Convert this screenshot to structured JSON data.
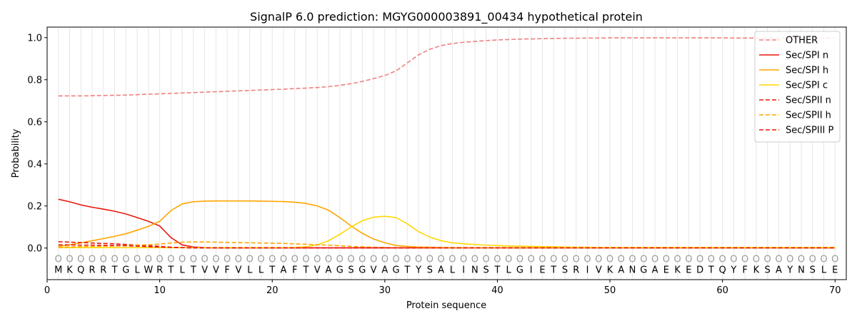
{
  "chart_data": {
    "type": "line",
    "title": "SignalP 6.0 prediction: MGYG000003891_00434 hypothetical protein",
    "xlabel": "Protein sequence",
    "ylabel": "Probability",
    "xlim": [
      0,
      71
    ],
    "ylim": [
      -0.15,
      1.05
    ],
    "xticks": [
      "0",
      "10",
      "20",
      "30",
      "40",
      "50",
      "60",
      "70"
    ],
    "yticks": [
      "0.0",
      "0.2",
      "0.4",
      "0.6",
      "0.8",
      "1.0"
    ],
    "grid": "vertical lines at each residue",
    "legend_position": "top-right",
    "sequence": [
      "M",
      "K",
      "Q",
      "R",
      "R",
      "T",
      "G",
      "L",
      "W",
      "R",
      "T",
      "L",
      "T",
      "V",
      "V",
      "F",
      "V",
      "L",
      "L",
      "T",
      "A",
      "F",
      "T",
      "V",
      "A",
      "G",
      "S",
      "G",
      "V",
      "A",
      "G",
      "T",
      "Y",
      "S",
      "A",
      "L",
      "I",
      "N",
      "S",
      "T",
      "L",
      "G",
      "I",
      "E",
      "T",
      "S",
      "R",
      "I",
      "V",
      "K",
      "A",
      "N",
      "G",
      "A",
      "E",
      "K",
      "E",
      "D",
      "T",
      "Q",
      "Y",
      "F",
      "K",
      "S",
      "A",
      "Y",
      "N",
      "S",
      "L",
      "E"
    ],
    "region_labels": [
      "O",
      "O",
      "O",
      "O",
      "O",
      "O",
      "O",
      "O",
      "O",
      "O",
      "O",
      "O",
      "O",
      "O",
      "O",
      "O",
      "O",
      "O",
      "O",
      "O",
      "O",
      "O",
      "O",
      "O",
      "O",
      "O",
      "O",
      "O",
      "O",
      "O",
      "O",
      "O",
      "O",
      "O",
      "O",
      "O",
      "O",
      "O",
      "O",
      "O",
      "O",
      "O",
      "O",
      "O",
      "O",
      "O",
      "O",
      "O",
      "O",
      "O",
      "O",
      "O",
      "O",
      "O",
      "O",
      "O",
      "O",
      "O",
      "O",
      "O",
      "O",
      "O",
      "O",
      "O",
      "O",
      "O",
      "O",
      "O",
      "O",
      "O"
    ],
    "series": [
      {
        "name": "OTHER",
        "color": "#f08080",
        "dash": "dashed",
        "values": [
          0.723,
          0.723,
          0.723,
          0.724,
          0.725,
          0.726,
          0.727,
          0.729,
          0.731,
          0.733,
          0.735,
          0.737,
          0.739,
          0.741,
          0.743,
          0.745,
          0.747,
          0.749,
          0.751,
          0.753,
          0.755,
          0.758,
          0.76,
          0.763,
          0.767,
          0.773,
          0.781,
          0.792,
          0.805,
          0.82,
          0.842,
          0.88,
          0.918,
          0.945,
          0.962,
          0.972,
          0.978,
          0.982,
          0.986,
          0.989,
          0.991,
          0.993,
          0.994,
          0.995,
          0.996,
          0.997,
          0.997,
          0.998,
          0.998,
          0.999,
          0.999,
          0.999,
          0.999,
          0.999,
          0.999,
          0.999,
          0.999,
          0.999,
          0.999,
          0.999,
          0.998,
          0.998,
          0.998,
          0.998,
          0.998,
          0.998,
          0.998,
          0.998,
          0.998,
          0.999
        ]
      },
      {
        "name": "Sec/SPI n",
        "color": "#e8180c",
        "dash": "solid",
        "values": [
          0.232,
          0.22,
          0.205,
          0.194,
          0.185,
          0.175,
          0.162,
          0.145,
          0.127,
          0.105,
          0.05,
          0.015,
          0.005,
          0.002,
          0.001,
          0.001,
          0.001,
          0.001,
          0.001,
          0.001,
          0.001,
          0.001,
          0.001,
          0.001,
          0.001,
          0.001,
          0.001,
          0.001,
          0.001,
          0.001,
          0.001,
          0.001,
          0.001,
          0.001,
          0.001,
          0.001,
          0.001,
          0.001,
          0.001,
          0.001,
          0.001,
          0.001,
          0.001,
          0.001,
          0.001,
          0.001,
          0.001,
          0.001,
          0.001,
          0.001,
          0.001,
          0.001,
          0.001,
          0.001,
          0.001,
          0.001,
          0.001,
          0.001,
          0.001,
          0.001,
          0.001,
          0.001,
          0.001,
          0.001,
          0.001,
          0.001,
          0.001,
          0.001,
          0.001,
          0.001
        ]
      },
      {
        "name": "Sec/SPI h",
        "color": "#ffa500",
        "dash": "solid",
        "values": [
          0.008,
          0.015,
          0.025,
          0.035,
          0.045,
          0.056,
          0.068,
          0.085,
          0.103,
          0.127,
          0.178,
          0.21,
          0.22,
          0.223,
          0.224,
          0.224,
          0.224,
          0.224,
          0.223,
          0.222,
          0.221,
          0.218,
          0.212,
          0.2,
          0.18,
          0.145,
          0.105,
          0.07,
          0.043,
          0.025,
          0.012,
          0.008,
          0.005,
          0.004,
          0.003,
          0.002,
          0.002,
          0.002,
          0.002,
          0.002,
          0.002,
          0.002,
          0.002,
          0.002,
          0.002,
          0.002,
          0.002,
          0.002,
          0.002,
          0.002,
          0.002,
          0.002,
          0.002,
          0.002,
          0.002,
          0.002,
          0.002,
          0.002,
          0.002,
          0.002,
          0.002,
          0.002,
          0.002,
          0.002,
          0.002,
          0.002,
          0.002,
          0.002,
          0.002,
          0.002
        ]
      },
      {
        "name": "Sec/SPI c",
        "color": "#ffd700",
        "dash": "solid",
        "values": [
          0.002,
          0.002,
          0.002,
          0.002,
          0.002,
          0.002,
          0.002,
          0.002,
          0.002,
          0.002,
          0.002,
          0.002,
          0.002,
          0.002,
          0.002,
          0.002,
          0.002,
          0.002,
          0.002,
          0.002,
          0.002,
          0.003,
          0.006,
          0.015,
          0.035,
          0.065,
          0.1,
          0.13,
          0.147,
          0.151,
          0.145,
          0.115,
          0.078,
          0.052,
          0.035,
          0.025,
          0.02,
          0.017,
          0.014,
          0.012,
          0.01,
          0.009,
          0.008,
          0.007,
          0.006,
          0.005,
          0.004,
          0.004,
          0.003,
          0.003,
          0.003,
          0.003,
          0.003,
          0.003,
          0.003,
          0.003,
          0.003,
          0.003,
          0.003,
          0.003,
          0.003,
          0.003,
          0.003,
          0.003,
          0.003,
          0.003,
          0.003,
          0.003,
          0.003,
          0.003
        ]
      },
      {
        "name": "Sec/SPII n",
        "color": "#e8180c",
        "dash": "dashed",
        "values": [
          0.03,
          0.028,
          0.026,
          0.024,
          0.022,
          0.02,
          0.017,
          0.014,
          0.011,
          0.008,
          0.004,
          0.002,
          0.001,
          0.001,
          0.001,
          0.001,
          0.001,
          0.001,
          0.001,
          0.001,
          0.001,
          0.001,
          0.001,
          0.001,
          0.001,
          0.001,
          0.001,
          0.001,
          0.001,
          0.001,
          0.001,
          0.001,
          0.001,
          0.001,
          0.001,
          0.001,
          0.001,
          0.001,
          0.001,
          0.001,
          0.001,
          0.001,
          0.001,
          0.001,
          0.001,
          0.001,
          0.001,
          0.001,
          0.001,
          0.001,
          0.001,
          0.001,
          0.001,
          0.001,
          0.001,
          0.001,
          0.001,
          0.001,
          0.001,
          0.001,
          0.001,
          0.001,
          0.001,
          0.001,
          0.001,
          0.001,
          0.001,
          0.001,
          0.001,
          0.001
        ]
      },
      {
        "name": "Sec/SPII h",
        "color": "#ffa500",
        "dash": "dashed",
        "values": [
          0.003,
          0.005,
          0.007,
          0.008,
          0.009,
          0.01,
          0.012,
          0.014,
          0.016,
          0.019,
          0.024,
          0.028,
          0.029,
          0.029,
          0.028,
          0.027,
          0.026,
          0.025,
          0.024,
          0.023,
          0.022,
          0.02,
          0.018,
          0.016,
          0.014,
          0.011,
          0.008,
          0.006,
          0.004,
          0.003,
          0.002,
          0.002,
          0.001,
          0.001,
          0.001,
          0.001,
          0.001,
          0.001,
          0.001,
          0.001,
          0.001,
          0.001,
          0.001,
          0.001,
          0.001,
          0.001,
          0.001,
          0.001,
          0.001,
          0.001,
          0.001,
          0.001,
          0.001,
          0.001,
          0.001,
          0.001,
          0.001,
          0.001,
          0.001,
          0.001,
          0.001,
          0.001,
          0.001,
          0.001,
          0.001,
          0.001,
          0.001,
          0.001,
          0.001,
          0.001
        ]
      },
      {
        "name": "Sec/SPIII P",
        "color": "#e8180c",
        "dash": "dashed",
        "values": [
          0.015,
          0.015,
          0.014,
          0.014,
          0.013,
          0.012,
          0.011,
          0.009,
          0.007,
          0.005,
          0.003,
          0.002,
          0.001,
          0.001,
          0.001,
          0.001,
          0.001,
          0.001,
          0.001,
          0.001,
          0.001,
          0.001,
          0.001,
          0.001,
          0.001,
          0.001,
          0.001,
          0.001,
          0.001,
          0.001,
          0.001,
          0.001,
          0.001,
          0.001,
          0.001,
          0.001,
          0.001,
          0.001,
          0.001,
          0.001,
          0.001,
          0.001,
          0.001,
          0.001,
          0.001,
          0.001,
          0.001,
          0.001,
          0.001,
          0.001,
          0.001,
          0.001,
          0.001,
          0.001,
          0.001,
          0.001,
          0.001,
          0.001,
          0.001,
          0.001,
          0.001,
          0.001,
          0.001,
          0.001,
          0.001,
          0.001,
          0.001,
          0.001,
          0.001,
          0.001
        ]
      }
    ]
  }
}
